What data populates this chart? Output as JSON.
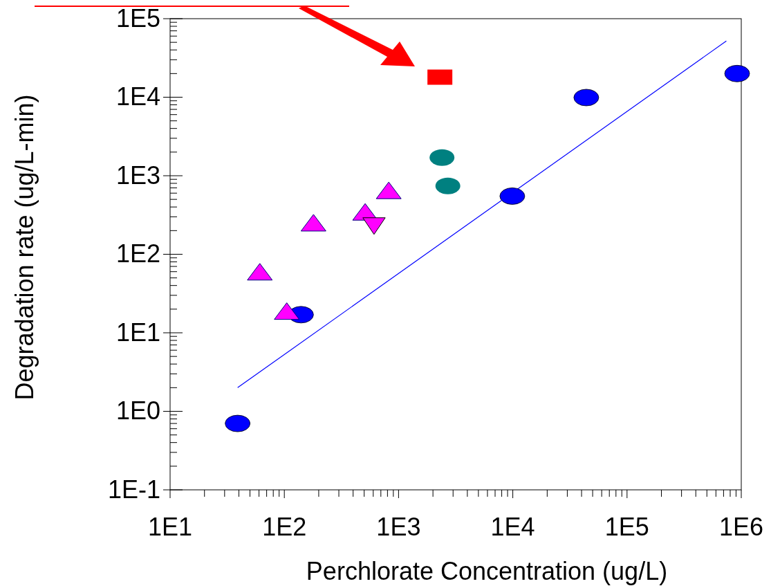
{
  "chart_data": {
    "type": "scatter",
    "xlabel": "Perchlorate Concentration (ug/L)",
    "ylabel": "Degradation rate (ug/L-min)",
    "log": "xy",
    "grid": false,
    "legend": false,
    "xlim": [
      10,
      1000000
    ],
    "ylim": [
      0.1,
      100000
    ],
    "xticks": [
      {
        "value": 10,
        "label": "1E1"
      },
      {
        "value": 100,
        "label": "1E2"
      },
      {
        "value": 1000,
        "label": "1E3"
      },
      {
        "value": 10000,
        "label": "1E4"
      },
      {
        "value": 100000,
        "label": "1E5"
      },
      {
        "value": 1000000,
        "label": "1E6"
      }
    ],
    "yticks": [
      {
        "value": 0.1,
        "label": "1E-1"
      },
      {
        "value": 1,
        "label": "1E0"
      },
      {
        "value": 10,
        "label": "1E1"
      },
      {
        "value": 100,
        "label": "1E2"
      },
      {
        "value": 1000,
        "label": "1E3"
      },
      {
        "value": 10000,
        "label": "1E4"
      },
      {
        "value": 100000,
        "label": "1E5"
      }
    ],
    "series": [
      {
        "type": "line",
        "color": "#0000ff",
        "marker": "none",
        "line_style": "solid",
        "x": [
          39,
          740000
        ],
        "values": [
          2,
          52000
        ]
      },
      {
        "color": "#0000ff",
        "marker": "circle",
        "x": [
          39,
          140,
          9900,
          44000,
          920000
        ],
        "values": [
          0.7,
          17,
          550,
          9900,
          20000
        ]
      },
      {
        "color": "#008080",
        "marker": "circle",
        "x": [
          2400,
          2700
        ],
        "values": [
          1700,
          740
        ]
      },
      {
        "color": "#ff00ff",
        "marker": "triangle",
        "x": [
          61,
          105,
          180,
          510,
          820
        ],
        "values": [
          57,
          18,
          240,
          330,
          620
        ]
      },
      {
        "color": "#ff00ff",
        "marker": "triangle-down",
        "x": [
          610
        ],
        "values": [
          240
        ]
      },
      {
        "color": "#ff0000",
        "marker": "square",
        "x": [
          2300
        ],
        "values": [
          18000
        ]
      }
    ]
  }
}
